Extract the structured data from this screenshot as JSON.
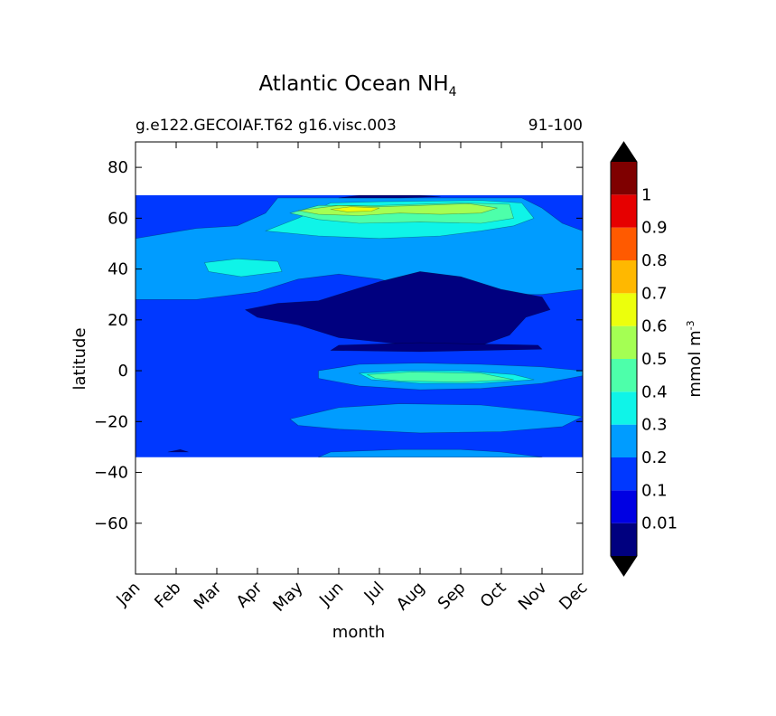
{
  "chart_data": {
    "type": "heatmap",
    "title": "Atlantic Ocean NH",
    "title_subscript": "4",
    "subtitle_left": "g.e122.GECOIAF.T62 g16.visc.003",
    "subtitle_right": "91-100",
    "xlabel": "month",
    "ylabel": "latitude",
    "x_categories": [
      "Jan",
      "Feb",
      "Mar",
      "Apr",
      "May",
      "Jun",
      "Jul",
      "Aug",
      "Sep",
      "Oct",
      "Nov",
      "Dec"
    ],
    "xlim": [
      0,
      11
    ],
    "ylim": [
      -80,
      90
    ],
    "y_ticks": [
      80,
      60,
      40,
      20,
      0,
      -20,
      -40,
      -60
    ],
    "data_lat_range": [
      -34,
      69
    ],
    "colorbar": {
      "label": "mmol m",
      "label_superscript": "-3",
      "levels": [
        0.01,
        0.1,
        0.2,
        0.3,
        0.4,
        0.5,
        0.6,
        0.7,
        0.8,
        0.9,
        1
      ],
      "tick_labels": [
        "0.01",
        "0.1",
        "0.2",
        "0.3",
        "0.4",
        "0.5",
        "0.6",
        "0.7",
        "0.8",
        "0.9",
        "1"
      ],
      "colors": [
        "#00007f",
        "#0000e3",
        "#0038ff",
        "#009cff",
        "#0ff4e8",
        "#4dffaa",
        "#a4ff53",
        "#ecff0c",
        "#ffb800",
        "#ff5a00",
        "#e60000",
        "#7f0000"
      ],
      "extend": "both",
      "under_color": "#000000",
      "over_color": "#000000"
    },
    "regions": [
      {
        "level": 0.1,
        "points": [
          [
            0,
            -34
          ],
          [
            11,
            -34
          ],
          [
            11,
            69
          ],
          [
            0,
            69
          ]
        ]
      },
      {
        "level": 0.2,
        "points": [
          [
            0,
            52
          ],
          [
            1.5,
            56
          ],
          [
            2.5,
            57
          ],
          [
            3.2,
            62
          ],
          [
            3.5,
            68
          ],
          [
            9.5,
            68
          ],
          [
            10,
            64
          ],
          [
            10.5,
            58
          ],
          [
            11,
            55
          ],
          [
            11,
            32
          ],
          [
            10,
            30
          ],
          [
            8.5,
            30
          ],
          [
            7,
            32
          ],
          [
            6,
            36
          ],
          [
            5,
            38
          ],
          [
            4,
            36
          ],
          [
            3,
            31
          ],
          [
            1.5,
            28
          ],
          [
            0,
            28
          ]
        ]
      },
      {
        "level": 0.2,
        "points": [
          [
            4.5,
            0
          ],
          [
            5.5,
            2.5
          ],
          [
            7,
            3
          ],
          [
            8.5,
            2.5
          ],
          [
            10,
            1.5
          ],
          [
            11,
            0
          ],
          [
            11,
            -2
          ],
          [
            10,
            -5
          ],
          [
            8.5,
            -7
          ],
          [
            7,
            -7.5
          ],
          [
            5.5,
            -6
          ],
          [
            4.5,
            -3
          ]
        ]
      },
      {
        "level": 0.2,
        "points": [
          [
            3.8,
            -19
          ],
          [
            5,
            -14.5
          ],
          [
            6.5,
            -13
          ],
          [
            8.5,
            -13.5
          ],
          [
            10,
            -16
          ],
          [
            11,
            -18
          ],
          [
            10.5,
            -22
          ],
          [
            9,
            -24
          ],
          [
            7,
            -24.5
          ],
          [
            5,
            -23
          ],
          [
            4,
            -21.5
          ]
        ]
      },
      {
        "level": 0.2,
        "points": [
          [
            4.8,
            -32
          ],
          [
            6.5,
            -31
          ],
          [
            8,
            -31
          ],
          [
            9,
            -32
          ],
          [
            10,
            -34
          ],
          [
            4.5,
            -34
          ]
        ]
      },
      {
        "level": 0.3,
        "points": [
          [
            1.7,
            42.5
          ],
          [
            2.5,
            44
          ],
          [
            3.5,
            43
          ],
          [
            3.6,
            39
          ],
          [
            2.6,
            37
          ],
          [
            1.8,
            39
          ]
        ]
      },
      {
        "level": 0.3,
        "points": [
          [
            3.2,
            55
          ],
          [
            4,
            60
          ],
          [
            4.8,
            66
          ],
          [
            6,
            66.5
          ],
          [
            8.5,
            67
          ],
          [
            9.5,
            66
          ],
          [
            9.8,
            60
          ],
          [
            9.3,
            57
          ],
          [
            8.5,
            55
          ],
          [
            7.5,
            53
          ],
          [
            6,
            52
          ],
          [
            4.5,
            53
          ]
        ]
      },
      {
        "level": 0.3,
        "points": [
          [
            5.5,
            -1
          ],
          [
            6.5,
            0
          ],
          [
            8,
            0
          ],
          [
            9.3,
            -1.5
          ],
          [
            9.8,
            -3.5
          ],
          [
            8.5,
            -5
          ],
          [
            7,
            -5
          ],
          [
            5.8,
            -3.5
          ]
        ]
      },
      {
        "level": 0.4,
        "points": [
          [
            3.8,
            62
          ],
          [
            4.5,
            65
          ],
          [
            6,
            65
          ],
          [
            8,
            66
          ],
          [
            9.2,
            65.5
          ],
          [
            9.3,
            60
          ],
          [
            8.5,
            58
          ],
          [
            7,
            58.5
          ],
          [
            5.5,
            58
          ],
          [
            4.5,
            59.5
          ]
        ]
      },
      {
        "level": 0.4,
        "points": [
          [
            5.7,
            -1.5
          ],
          [
            6.8,
            -0.5
          ],
          [
            8.5,
            -1
          ],
          [
            9.3,
            -3.5
          ],
          [
            8,
            -4.5
          ],
          [
            6.5,
            -4
          ],
          [
            5.9,
            -3
          ]
        ]
      },
      {
        "level": 0.5,
        "points": [
          [
            4,
            63
          ],
          [
            5,
            65
          ],
          [
            6,
            64.5
          ],
          [
            7,
            65
          ],
          [
            8.2,
            65.7
          ],
          [
            8.9,
            64
          ],
          [
            8.5,
            62
          ],
          [
            7.5,
            61.5
          ],
          [
            6.5,
            62
          ],
          [
            5.5,
            61
          ],
          [
            4.5,
            61.5
          ]
        ]
      },
      {
        "level": 0.6,
        "points": [
          [
            4.8,
            63.5
          ],
          [
            5.3,
            64.5
          ],
          [
            6,
            64
          ],
          [
            5.8,
            62.8
          ],
          [
            5.2,
            62.5
          ]
        ]
      },
      {
        "level": 0.01,
        "points": [
          [
            2.7,
            24
          ],
          [
            3.5,
            26.5
          ],
          [
            4.5,
            27.5
          ],
          [
            6,
            35
          ],
          [
            7,
            39
          ],
          [
            8,
            37
          ],
          [
            9,
            32
          ],
          [
            10,
            29
          ],
          [
            10.2,
            24
          ],
          [
            9.6,
            21
          ],
          [
            9.2,
            14
          ],
          [
            8.5,
            10
          ],
          [
            7.5,
            9.5
          ],
          [
            6.5,
            10.5
          ],
          [
            5,
            13
          ],
          [
            4,
            18
          ],
          [
            3,
            21
          ]
        ]
      },
      {
        "level": 0.01,
        "points": [
          [
            4.8,
            8
          ],
          [
            5,
            10
          ],
          [
            7,
            11
          ],
          [
            9.9,
            10
          ],
          [
            10,
            8.5
          ],
          [
            7,
            7.5
          ]
        ]
      },
      {
        "level": 0.01,
        "points": [
          [
            0.8,
            -32
          ],
          [
            1.1,
            -31
          ],
          [
            1.3,
            -32
          ]
        ]
      },
      {
        "level": 0.01,
        "points": [
          [
            5,
            68
          ],
          [
            5.5,
            69
          ],
          [
            7,
            69
          ],
          [
            7.5,
            68.5
          ],
          [
            6.5,
            68
          ]
        ]
      }
    ]
  }
}
